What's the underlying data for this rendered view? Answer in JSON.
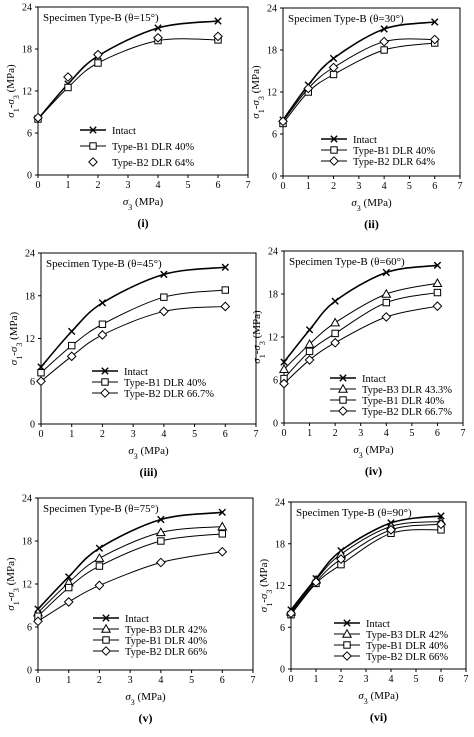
{
  "chart_data": [
    {
      "panel_label": "(i)",
      "type": "line",
      "title": "Specimen Type-B (θ=15°)",
      "xlabel": "σ3 (MPa)",
      "ylabel": "σ1-σ3 (MPa)",
      "xlim": [
        0,
        7
      ],
      "ylim": [
        0,
        24
      ],
      "xticks": [
        "0",
        "1",
        "2",
        "3",
        "4",
        "5",
        "6",
        "7"
      ],
      "yticks": [
        "0",
        "6",
        "12",
        "18",
        "24"
      ],
      "legend_position": "bottom-center",
      "series": [
        {
          "name": "Intact",
          "marker": "cross",
          "line": true,
          "x": [
            0,
            1,
            2,
            4,
            6
          ],
          "y": [
            8.0,
            13.0,
            17.0,
            21.0,
            22.0
          ]
        },
        {
          "name": "Type-B1 DLR 40%",
          "marker": "square",
          "line": true,
          "x": [
            0,
            1,
            2,
            4,
            6
          ],
          "y": [
            8.0,
            12.5,
            16.0,
            19.2,
            19.3
          ]
        },
        {
          "name": "Type-B2 DLR 64%",
          "marker": "diamond",
          "line": false,
          "x": [
            0,
            1,
            2,
            4,
            6
          ],
          "y": [
            8.2,
            14.0,
            17.2,
            19.6,
            19.8
          ]
        }
      ]
    },
    {
      "panel_label": "(ii)",
      "type": "line",
      "title": "Specimen Type-B (θ=30°)",
      "xlabel": "σ3 (MPa)",
      "ylabel": "σ1-σ3 (MPa)",
      "xlim": [
        0,
        7
      ],
      "ylim": [
        0,
        24
      ],
      "xticks": [
        "0",
        "1",
        "2",
        "3",
        "4",
        "5",
        "6",
        "7"
      ],
      "yticks": [
        "0",
        "6",
        "12",
        "18",
        "24"
      ],
      "legend_position": "bottom-right",
      "series": [
        {
          "name": "Intact",
          "marker": "cross",
          "line": true,
          "x": [
            0,
            1,
            2,
            4,
            6
          ],
          "y": [
            8.0,
            13.0,
            16.8,
            21.0,
            22.0
          ]
        },
        {
          "name": "Type-B1 DLR 40%",
          "marker": "square",
          "line": true,
          "x": [
            0,
            1,
            2,
            4,
            6
          ],
          "y": [
            7.5,
            12.0,
            14.5,
            18.0,
            19.0
          ]
        },
        {
          "name": "Type-B2 DLR 64%",
          "marker": "diamond",
          "line": true,
          "x": [
            0,
            1,
            2,
            4,
            6
          ],
          "y": [
            7.8,
            12.5,
            15.5,
            19.2,
            19.5
          ]
        }
      ]
    },
    {
      "panel_label": "(iii)",
      "type": "line",
      "title": "Specimen Type-B (θ=45°)",
      "xlabel": "σ3 (MPa)",
      "ylabel": "σ1-σ3 (MPa)",
      "xlim": [
        0,
        7
      ],
      "ylim": [
        0,
        24
      ],
      "xticks": [
        "0",
        "1",
        "2",
        "3",
        "4",
        "5",
        "6",
        "7"
      ],
      "yticks": [
        "0",
        "6",
        "12",
        "18",
        "24"
      ],
      "legend_position": "bottom-right",
      "series": [
        {
          "name": "Intact",
          "marker": "cross",
          "line": true,
          "x": [
            0,
            1,
            2,
            4,
            6
          ],
          "y": [
            8.0,
            13.0,
            17.0,
            21.0,
            22.0
          ]
        },
        {
          "name": "Type-B1 DLR 40%",
          "marker": "square",
          "line": true,
          "x": [
            0,
            1,
            2,
            4,
            6
          ],
          "y": [
            7.2,
            11.0,
            14.0,
            17.8,
            18.8
          ]
        },
        {
          "name": "Type-B2 DLR 66.7%",
          "marker": "diamond",
          "line": true,
          "x": [
            0,
            1,
            2,
            4,
            6
          ],
          "y": [
            6.0,
            9.5,
            12.5,
            15.8,
            16.5
          ]
        }
      ]
    },
    {
      "panel_label": "(iv)",
      "type": "line",
      "title": "Specimen Type-B (θ=60°)",
      "xlabel": "σ3 (MPa)",
      "ylabel": "σ1-σ3 (MPa)",
      "xlim": [
        0,
        7
      ],
      "ylim": [
        0,
        24
      ],
      "xticks": [
        "0",
        "1",
        "2",
        "3",
        "4",
        "5",
        "6",
        "7"
      ],
      "yticks": [
        "0",
        "6",
        "12",
        "18",
        "24"
      ],
      "legend_position": "bottom-right",
      "series": [
        {
          "name": "Intact",
          "marker": "cross",
          "line": true,
          "x": [
            0,
            1,
            2,
            4,
            6
          ],
          "y": [
            8.5,
            13.0,
            17.0,
            21.0,
            22.0
          ]
        },
        {
          "name": "Type-B3 DLR 43.3%",
          "marker": "triangle",
          "line": true,
          "x": [
            0,
            1,
            2,
            4,
            6
          ],
          "y": [
            7.5,
            11.0,
            14.0,
            18.0,
            19.5
          ]
        },
        {
          "name": "Type-B1 DLR 40%",
          "marker": "square",
          "line": true,
          "x": [
            0,
            1,
            2,
            4,
            6
          ],
          "y": [
            6.2,
            10.0,
            12.5,
            16.8,
            18.2
          ]
        },
        {
          "name": "Type-B2 DLR 66.7%",
          "marker": "diamond",
          "line": true,
          "x": [
            0,
            1,
            2,
            4,
            6
          ],
          "y": [
            5.5,
            8.8,
            11.2,
            14.8,
            16.3
          ]
        }
      ]
    },
    {
      "panel_label": "(v)",
      "type": "line",
      "title": "Specimen Type-B (θ=75°)",
      "xlabel": "σ3 (MPa)",
      "ylabel": "σ1-σ3 (MPa)",
      "xlim": [
        0,
        7
      ],
      "ylim": [
        0,
        24
      ],
      "xticks": [
        "0",
        "1",
        "2",
        "3",
        "4",
        "5",
        "6",
        "7"
      ],
      "yticks": [
        "0",
        "6",
        "12",
        "18",
        "24"
      ],
      "legend_position": "bottom-right",
      "series": [
        {
          "name": "Intact",
          "marker": "cross",
          "line": true,
          "x": [
            0,
            1,
            2,
            4,
            6
          ],
          "y": [
            8.5,
            13.0,
            17.0,
            21.0,
            22.0
          ]
        },
        {
          "name": "Type-B3 DLR 42%",
          "marker": "triangle",
          "line": true,
          "x": [
            0,
            1,
            2,
            4,
            6
          ],
          "y": [
            8.0,
            12.2,
            15.6,
            19.2,
            20.0
          ]
        },
        {
          "name": "Type-B1 DLR 40%",
          "marker": "square",
          "line": true,
          "x": [
            0,
            1,
            2,
            4,
            6
          ],
          "y": [
            7.5,
            11.5,
            14.5,
            18.0,
            19.0
          ]
        },
        {
          "name": "Type-B2 DLR 66%",
          "marker": "diamond",
          "line": true,
          "x": [
            0,
            1,
            2,
            4,
            6
          ],
          "y": [
            6.8,
            9.5,
            11.8,
            15.0,
            16.5
          ]
        }
      ]
    },
    {
      "panel_label": "(vi)",
      "type": "line",
      "title": "Specimen Type-B (θ=90°)",
      "xlabel": "σ3 (MPa)",
      "ylabel": "σ1-σ3 (MPa)",
      "xlim": [
        0,
        7
      ],
      "ylim": [
        0,
        24
      ],
      "xticks": [
        "0",
        "1",
        "2",
        "3",
        "4",
        "5",
        "6",
        "7"
      ],
      "yticks": [
        "0",
        "6",
        "12",
        "18",
        "24"
      ],
      "legend_position": "bottom-right",
      "series": [
        {
          "name": "Intact",
          "marker": "cross",
          "line": true,
          "x": [
            0,
            1,
            2,
            4,
            6
          ],
          "y": [
            8.5,
            13.0,
            17.0,
            21.0,
            22.0
          ]
        },
        {
          "name": "Type-B3 DLR 42%",
          "marker": "triangle",
          "line": true,
          "x": [
            0,
            1,
            2,
            4,
            6
          ],
          "y": [
            8.2,
            12.8,
            16.5,
            20.5,
            21.2
          ]
        },
        {
          "name": "Type-B1 DLR 40%",
          "marker": "square",
          "line": true,
          "x": [
            0,
            1,
            2,
            4,
            6
          ],
          "y": [
            7.8,
            12.3,
            15.0,
            19.5,
            20.0
          ]
        },
        {
          "name": "Type-B2 DLR 66%",
          "marker": "diamond",
          "line": true,
          "x": [
            0,
            1,
            2,
            4,
            6
          ],
          "y": [
            8.0,
            12.5,
            15.8,
            20.0,
            20.8
          ]
        }
      ]
    }
  ]
}
